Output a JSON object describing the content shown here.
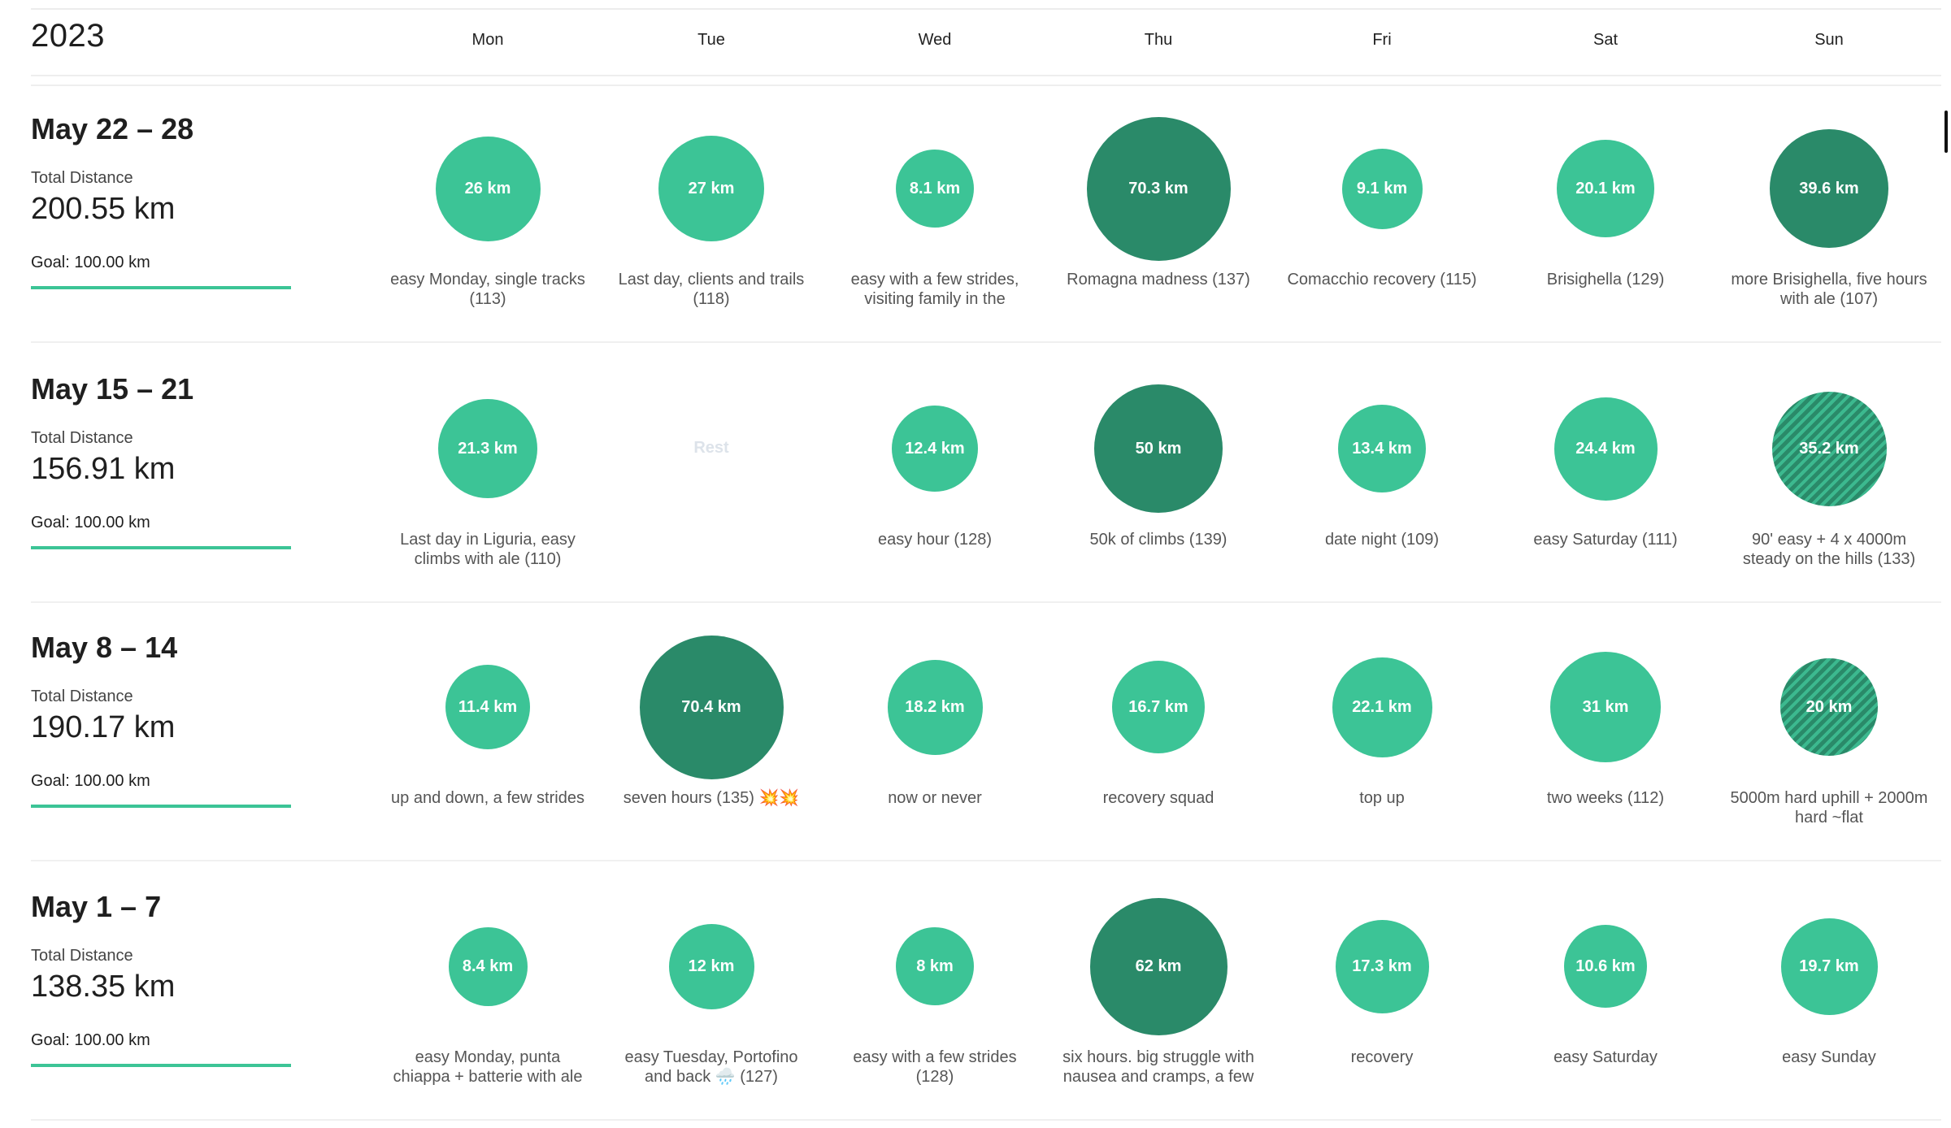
{
  "year": "2023",
  "days": [
    "Mon",
    "Tue",
    "Wed",
    "Thu",
    "Fri",
    "Sat",
    "Sun"
  ],
  "total_label": "Total Distance",
  "weeks": [
    {
      "title": "May 22 – 28",
      "total": "200.55 km",
      "goal": "Goal: 100.00 km",
      "goal_progress": 1.0,
      "days": [
        {
          "distance": "26 km",
          "km": 26,
          "caption": "easy Monday, single tracks (113)",
          "style": "light"
        },
        {
          "distance": "27 km",
          "km": 27,
          "caption": "Last day, clients and trails (118)",
          "style": "light"
        },
        {
          "distance": "8.1 km",
          "km": 8.1,
          "caption": "easy with a few strides, visiting family in the",
          "style": "light"
        },
        {
          "distance": "70.3 km",
          "km": 70.3,
          "caption": "Romagna madness (137)",
          "style": "dark"
        },
        {
          "distance": "9.1 km",
          "km": 9.1,
          "caption": "Comacchio recovery (115)",
          "style": "light"
        },
        {
          "distance": "20.1 km",
          "km": 20.1,
          "caption": "Brisighella (129)",
          "style": "light"
        },
        {
          "distance": "39.6 km",
          "km": 39.6,
          "caption": "more Brisighella, five hours with ale (107)",
          "style": "dark"
        }
      ]
    },
    {
      "title": "May 15 – 21",
      "total": "156.91 km",
      "goal": "Goal: 100.00 km",
      "goal_progress": 1.0,
      "days": [
        {
          "distance": "21.3 km",
          "km": 21.3,
          "caption": "Last day in Liguria, easy climbs with ale (110)",
          "style": "light"
        },
        {
          "rest": "Rest"
        },
        {
          "distance": "12.4 km",
          "km": 12.4,
          "caption": "easy hour (128)",
          "style": "light"
        },
        {
          "distance": "50 km",
          "km": 50,
          "caption": "50k of climbs (139)",
          "style": "dark"
        },
        {
          "distance": "13.4 km",
          "km": 13.4,
          "caption": "date night (109)",
          "style": "light"
        },
        {
          "distance": "24.4 km",
          "km": 24.4,
          "caption": "easy Saturday (111)",
          "style": "light"
        },
        {
          "distance": "35.2 km",
          "km": 35.2,
          "caption": "90' easy + 4 x 4000m steady on the hills (133)",
          "style": "hatched"
        }
      ]
    },
    {
      "title": "May 8 – 14",
      "total": "190.17 km",
      "goal": "Goal: 100.00 km",
      "goal_progress": 1.0,
      "days": [
        {
          "distance": "11.4 km",
          "km": 11.4,
          "caption": "up and down, a few strides",
          "style": "light"
        },
        {
          "distance": "70.4 km",
          "km": 70.4,
          "caption": "seven hours (135) 💥💥",
          "style": "dark"
        },
        {
          "distance": "18.2 km",
          "km": 18.2,
          "caption": "now or never",
          "style": "light"
        },
        {
          "distance": "16.7 km",
          "km": 16.7,
          "caption": "recovery squad",
          "style": "light"
        },
        {
          "distance": "22.1 km",
          "km": 22.1,
          "caption": "top up",
          "style": "light"
        },
        {
          "distance": "31 km",
          "km": 31,
          "caption": "two weeks (112)",
          "style": "light"
        },
        {
          "distance": "20 km",
          "km": 20,
          "caption": "5000m hard uphill + 2000m hard ~flat",
          "style": "hatched"
        }
      ]
    },
    {
      "title": "May 1 – 7",
      "total": "138.35 km",
      "goal": "Goal: 100.00 km",
      "goal_progress": 1.0,
      "days": [
        {
          "distance": "8.4 km",
          "km": 8.4,
          "caption": "easy Monday, punta chiappa + batterie with ale",
          "style": "light"
        },
        {
          "distance": "12 km",
          "km": 12,
          "caption": "easy Tuesday, Portofino and back 🌧️ (127)",
          "style": "light"
        },
        {
          "distance": "8 km",
          "km": 8,
          "caption": "easy with a few strides (128)",
          "style": "light"
        },
        {
          "distance": "62 km",
          "km": 62,
          "caption": "six hours. big struggle with nausea and cramps, a few",
          "style": "dark"
        },
        {
          "distance": "17.3 km",
          "km": 17.3,
          "caption": "recovery",
          "style": "light"
        },
        {
          "distance": "10.6 km",
          "km": 10.6,
          "caption": "easy Saturday",
          "style": "light"
        },
        {
          "distance": "19.7 km",
          "km": 19.7,
          "caption": "easy Sunday",
          "style": "light"
        }
      ]
    }
  ]
}
